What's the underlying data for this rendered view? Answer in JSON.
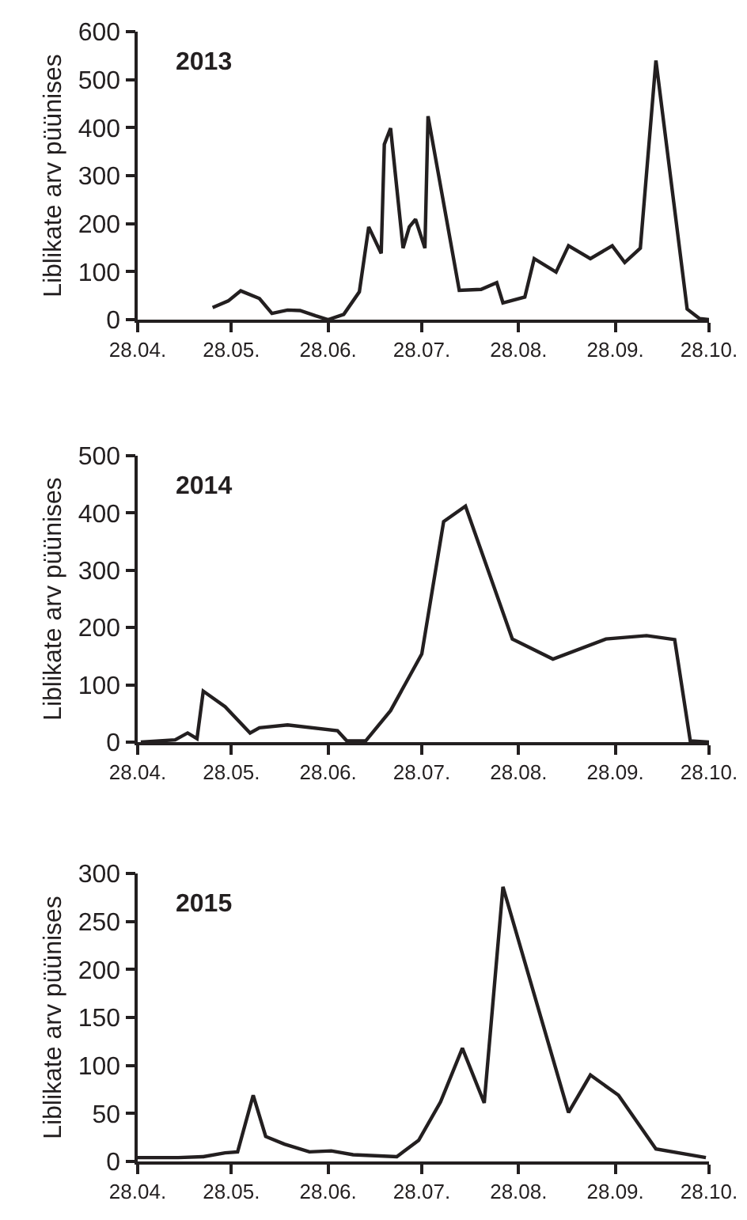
{
  "chart_data": [
    {
      "type": "line",
      "title": "2013",
      "ylabel": "Liblikate arv püünises",
      "x": [
        "--05-22",
        "--05-27",
        "--05-31",
        "--06-06",
        "--06-10",
        "--06-15",
        "--06-19",
        "--06-24",
        "--06-28",
        "--07-03",
        "--07-08",
        "--07-11",
        "--07-15",
        "--07-16",
        "--07-18",
        "--07-22",
        "--07-24",
        "--07-26",
        "--07-29",
        "--07-30",
        "--08-09",
        "--08-16",
        "--08-21",
        "--08-23",
        "--08-30",
        "--09-02",
        "--09-09",
        "--09-13",
        "--09-20",
        "--09-27",
        "--10-01",
        "--10-06",
        "--10-11",
        "--10-21",
        "--10-25",
        "--10-28"
      ],
      "series": [
        {
          "color": "#231f20",
          "values": [
            25,
            39,
            60,
            44,
            13,
            20,
            19,
            8,
            0,
            11,
            58,
            193,
            138,
            365,
            399,
            149,
            193,
            209,
            149,
            424,
            61,
            63,
            77,
            35,
            47,
            127,
            99,
            154,
            127,
            154,
            119,
            149,
            540,
            22,
            2,
            0
          ]
        }
      ],
      "xlim": [
        "--04-28",
        "--10-28"
      ],
      "xticks": [
        {
          "value": "--04-28",
          "label": "28.04."
        },
        {
          "value": "--05-28",
          "label": "28.05."
        },
        {
          "value": "--06-28",
          "label": "28.06."
        },
        {
          "value": "--07-28",
          "label": "28.07."
        },
        {
          "value": "--08-28",
          "label": "28.08."
        },
        {
          "value": "--09-28",
          "label": "28.09."
        },
        {
          "value": "--10-28",
          "label": "28.10."
        }
      ],
      "ylim": [
        0,
        600
      ],
      "yticks": [
        0,
        100,
        200,
        300,
        400,
        500,
        600
      ],
      "marker": "none",
      "line_style": "solid"
    },
    {
      "type": "line",
      "title": "2014",
      "ylabel": "Liblikate arv püünises",
      "x": [
        "--04-29",
        "--05-10",
        "--05-14",
        "--05-17",
        "--05-19",
        "--05-26",
        "--06-03",
        "--06-06",
        "--06-15",
        "--07-01",
        "--07-04",
        "--07-10",
        "--07-18",
        "--07-28",
        "--08-04",
        "--08-11",
        "--08-26",
        "--09-08",
        "--09-25",
        "--10-08",
        "--10-17",
        "--10-22",
        "--10-28"
      ],
      "series": [
        {
          "color": "#231f20",
          "values": [
            0,
            4,
            16,
            6,
            89,
            62,
            16,
            25,
            30,
            20,
            2,
            2,
            55,
            154,
            385,
            412,
            180,
            145,
            180,
            186,
            179,
            2,
            0
          ]
        }
      ],
      "xlim": [
        "--04-28",
        "--10-28"
      ],
      "xticks": [
        {
          "value": "--04-28",
          "label": "28.04."
        },
        {
          "value": "--05-28",
          "label": "28.05."
        },
        {
          "value": "--06-28",
          "label": "28.06."
        },
        {
          "value": "--07-28",
          "label": "28.07."
        },
        {
          "value": "--08-28",
          "label": "28.08."
        },
        {
          "value": "--09-28",
          "label": "28.09."
        },
        {
          "value": "--10-28",
          "label": "28.10."
        }
      ],
      "ylim": [
        0,
        500
      ],
      "yticks": [
        0,
        100,
        200,
        300,
        400,
        500
      ],
      "marker": "none",
      "line_style": "solid"
    },
    {
      "type": "line",
      "title": "2015",
      "ylabel": "Liblikate arv püünises",
      "x": [
        "--04-28",
        "--05-11",
        "--05-19",
        "--05-26",
        "--05-30",
        "--06-04",
        "--06-08",
        "--06-14",
        "--06-22",
        "--06-29",
        "--07-06",
        "--07-20",
        "--07-27",
        "--08-03",
        "--08-10",
        "--08-17",
        "--08-23",
        "--09-13",
        "--09-20",
        "--09-29",
        "--10-11",
        "--10-27"
      ],
      "series": [
        {
          "color": "#231f20",
          "values": [
            4,
            4,
            5,
            9,
            10,
            69,
            26,
            18,
            10,
            11,
            7,
            5,
            22,
            62,
            118,
            61,
            286,
            51,
            90,
            69,
            13,
            4
          ]
        }
      ],
      "xlim": [
        "--04-28",
        "--10-28"
      ],
      "xticks": [
        {
          "value": "--04-28",
          "label": "28.04."
        },
        {
          "value": "--05-28",
          "label": "28.05."
        },
        {
          "value": "--06-28",
          "label": "28.06."
        },
        {
          "value": "--07-28",
          "label": "28.07."
        },
        {
          "value": "--08-28",
          "label": "28.08."
        },
        {
          "value": "--09-28",
          "label": "28.09."
        },
        {
          "value": "--10-28",
          "label": "28.10."
        }
      ],
      "ylim": [
        0,
        300
      ],
      "yticks": [
        0,
        50,
        100,
        150,
        200,
        250,
        300
      ],
      "marker": "none",
      "line_style": "solid"
    }
  ]
}
